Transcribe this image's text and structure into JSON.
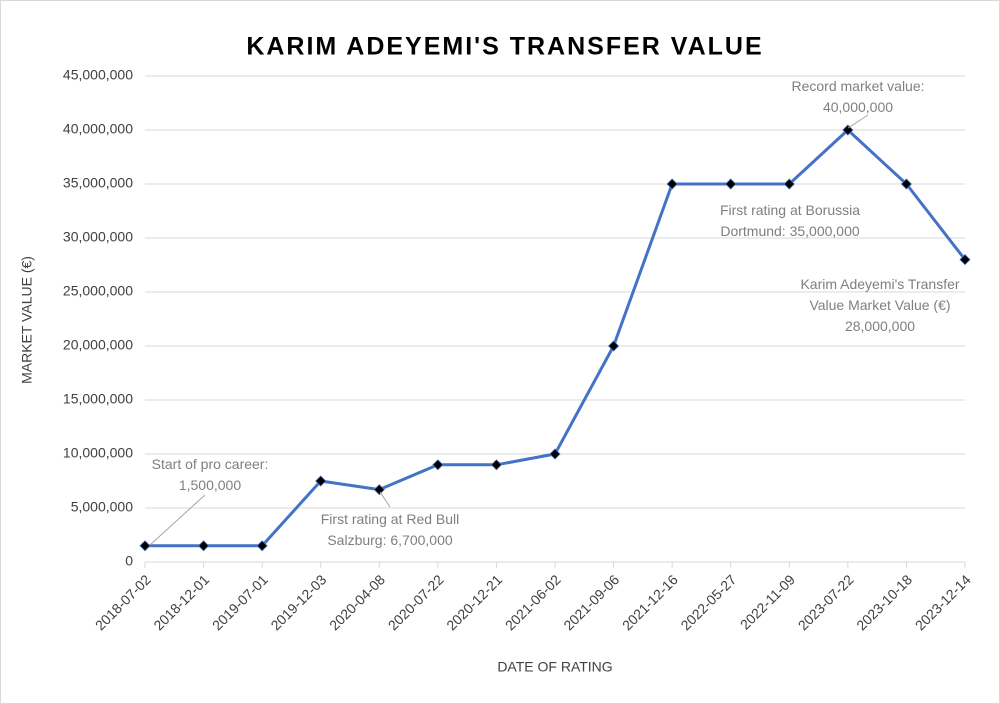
{
  "chart_data": {
    "type": "line",
    "title": "KARIM ADEYEMI'S TRANSFER VALUE",
    "x_label": "DATE OF RATING",
    "y_label": "MARKET VALUE (€)",
    "categories": [
      "2018-07-02",
      "2018-12-01",
      "2019-07-01",
      "2019-12-03",
      "2020-04-08",
      "2020-07-22",
      "2020-12-21",
      "2021-06-02",
      "2021-09-06",
      "2021-12-16",
      "2022-05-27",
      "2022-11-09",
      "2023-07-22",
      "2023-10-18",
      "2023-12-14"
    ],
    "series": [
      {
        "name": "Karim Adeyemi's Transfer Value Market Value (€)",
        "color": "#4472c4",
        "marker_color": "#000000",
        "values": [
          1500000,
          1500000,
          1500000,
          7500000,
          6700000,
          9000000,
          9000000,
          10000000,
          20000000,
          35000000,
          35000000,
          35000000,
          40000000,
          35000000,
          28000000
        ],
        "value_labels": [
          "Start of pro career:\n1,500,000",
          null,
          null,
          null,
          "First rating at Red Bull\nSalzburg: 6,700,000",
          null,
          null,
          null,
          null,
          "First rating at Borussia\nDortmund: 35,000,000",
          null,
          null,
          "Record market value:\n40,000,000",
          null,
          "28,000,000"
        ]
      }
    ],
    "ylim": [
      0,
      45000000
    ],
    "yticks": [
      0,
      {
        "value": 5000000,
        "label": "5,000,000"
      },
      {
        "value": 10000000,
        "label": "10,000,000"
      },
      {
        "value": 15000000,
        "label": "15,000,000"
      },
      {
        "value": 20000000,
        "label": "20,000,000"
      },
      {
        "value": 25000000,
        "label": "25,000,000"
      },
      {
        "value": 30000000,
        "label": "30,000,000"
      },
      {
        "value": 35000000,
        "label": "35,000,000"
      },
      {
        "value": 40000000,
        "label": "40,000,000"
      },
      {
        "value": 45000000,
        "label": "45,000,000"
      }
    ],
    "grid": true
  }
}
